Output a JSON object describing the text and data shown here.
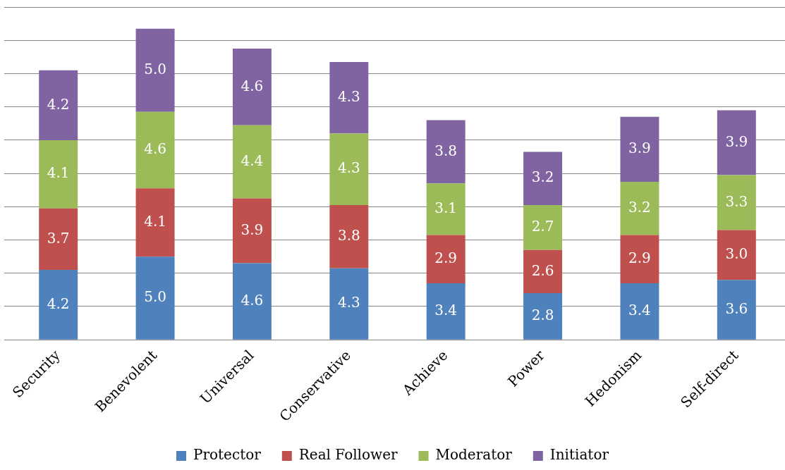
{
  "chart_data": {
    "type": "bar",
    "stacked": true,
    "categories": [
      "Security",
      "Benevolent",
      "Universal",
      "Conservative",
      "Achieve",
      "Power",
      "Hedonism",
      "Self-direct"
    ],
    "series": [
      {
        "name": "Protector",
        "color": "#4f81bd",
        "values": [
          4.2,
          5.0,
          4.6,
          4.3,
          3.4,
          2.8,
          3.4,
          3.6
        ],
        "value_labels": [
          "4.2",
          "5.0",
          "4.6",
          "4.3",
          "3.4",
          "2.8",
          "3.4",
          "3.6"
        ]
      },
      {
        "name": "Real Follower",
        "color": "#c0504d",
        "values": [
          3.7,
          4.1,
          3.9,
          3.8,
          2.9,
          2.6,
          2.9,
          3.0
        ],
        "value_labels": [
          "3.7",
          "4.1",
          "3.9",
          "3.8",
          "2.9",
          "2.6",
          "2.9",
          "3.0"
        ]
      },
      {
        "name": "Moderator",
        "color": "#9bbb59",
        "values": [
          4.1,
          4.6,
          4.4,
          4.3,
          3.1,
          2.7,
          3.2,
          3.3
        ],
        "value_labels": [
          "4.1",
          "4.6",
          "4.4",
          "4.3",
          "3.1",
          "2.7",
          "3.2",
          "3.3"
        ]
      },
      {
        "name": "Initiator",
        "color": "#8064a2",
        "values": [
          4.2,
          5.0,
          4.6,
          4.3,
          3.8,
          3.2,
          3.9,
          3.9
        ],
        "value_labels": [
          "4.2",
          "5.0",
          "4.6",
          "4.3",
          "3.8",
          "3.2",
          "3.9",
          "3.9"
        ]
      }
    ],
    "ylim": [
      0,
      20
    ],
    "yticks": [
      {
        "value": 0,
        "label": null
      },
      {
        "value": 2,
        "label": null
      },
      {
        "value": 4,
        "label": null
      },
      {
        "value": 6,
        "label": null
      },
      {
        "value": 8,
        "label": null
      },
      {
        "value": 10,
        "label": null
      },
      {
        "value": 12,
        "label": null
      },
      {
        "value": 14,
        "label": null
      },
      {
        "value": 16,
        "label": null
      },
      {
        "value": 18,
        "label": null
      },
      {
        "value": 20,
        "label": null
      }
    ],
    "tick_labels": "x",
    "grid": "y",
    "legend": "bottom"
  }
}
